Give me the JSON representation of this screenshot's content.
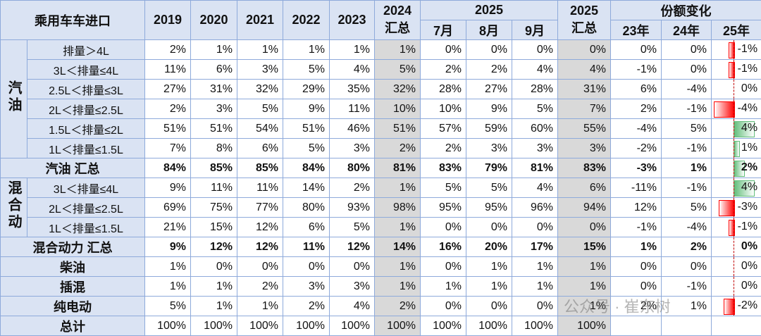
{
  "header": {
    "corner": "乘用车车进口",
    "years": [
      "2019",
      "2020",
      "2021",
      "2022",
      "2023"
    ],
    "y2024": "2024",
    "y2024_sub": "汇总",
    "y2025": "2025",
    "months": [
      "7月",
      "8月",
      "9月"
    ],
    "y2025_total": "2025",
    "y2025_total_sub": "汇总",
    "share": "份额变化",
    "share_years": [
      "23年",
      "24年",
      "25年"
    ]
  },
  "body": [
    {
      "group": "汽油",
      "rows": [
        {
          "label": "排量＞4L",
          "values": [
            "2%",
            "1%",
            "1%",
            "1%",
            "1%",
            "1%",
            "0%",
            "0%",
            "0%",
            "0%"
          ],
          "share_change": [
            "0%",
            "0%",
            {
              "value": -1,
              "label": "-1%"
            }
          ]
        },
        {
          "label": "3L＜排量≤4L",
          "values": [
            "11%",
            "6%",
            "3%",
            "5%",
            "4%",
            "5%",
            "2%",
            "2%",
            "4%",
            "4%"
          ],
          "share_change": [
            "-1%",
            "0%",
            {
              "value": -1,
              "label": "-1%"
            }
          ]
        },
        {
          "label": "2.5L＜排量≤3L",
          "values": [
            "27%",
            "31%",
            "32%",
            "29%",
            "35%",
            "32%",
            "28%",
            "27%",
            "28%",
            "31%"
          ],
          "share_change": [
            "6%",
            "-4%",
            {
              "value": 0,
              "label": "0%"
            }
          ]
        },
        {
          "label": "2L＜排量≤2.5L",
          "values": [
            "2%",
            "3%",
            "5%",
            "9%",
            "11%",
            "10%",
            "10%",
            "9%",
            "5%",
            "7%"
          ],
          "share_change": [
            "2%",
            "-1%",
            {
              "value": -4,
              "label": "-4%"
            }
          ]
        },
        {
          "label": "1.5L＜排量≤2L",
          "values": [
            "51%",
            "51%",
            "54%",
            "51%",
            "46%",
            "51%",
            "57%",
            "59%",
            "60%",
            "55%"
          ],
          "share_change": [
            "-4%",
            "5%",
            {
              "value": 4,
              "label": "4%"
            }
          ]
        },
        {
          "label": "1L＜排量≤1.5L",
          "values": [
            "7%",
            "8%",
            "6%",
            "5%",
            "3%",
            "2%",
            "2%",
            "3%",
            "3%",
            "3%"
          ],
          "share_change": [
            "-2%",
            "-1%",
            {
              "value": 1,
              "label": "1%"
            }
          ]
        }
      ]
    },
    {
      "label": "汽油 汇总",
      "bold": true,
      "values": [
        "84%",
        "85%",
        "85%",
        "84%",
        "80%",
        "81%",
        "83%",
        "79%",
        "81%",
        "83%"
      ],
      "share_change": [
        "-3%",
        "1%",
        {
          "value": 2,
          "label": "2%"
        }
      ]
    },
    {
      "group": "混合动",
      "rows": [
        {
          "label": "3L＜排量≤4L",
          "values": [
            "9%",
            "11%",
            "11%",
            "14%",
            "2%",
            "1%",
            "5%",
            "5%",
            "4%",
            "6%"
          ],
          "share_change": [
            "-11%",
            "-1%",
            {
              "value": 4,
              "label": "4%"
            }
          ]
        },
        {
          "label": "2L＜排量≤2.5L",
          "values": [
            "69%",
            "75%",
            "77%",
            "80%",
            "93%",
            "98%",
            "95%",
            "95%",
            "96%",
            "94%"
          ],
          "share_change": [
            "12%",
            "5%",
            {
              "value": -3,
              "label": "-3%"
            }
          ]
        },
        {
          "label": "1L＜排量≤1.5L",
          "values": [
            "21%",
            "15%",
            "12%",
            "6%",
            "5%",
            "1%",
            "0%",
            "0%",
            "0%",
            "0%"
          ],
          "share_change": [
            "-1%",
            "-4%",
            {
              "value": -1,
              "label": "-1%"
            }
          ]
        }
      ]
    },
    {
      "label": "混合动力 汇总",
      "bold": true,
      "values": [
        "9%",
        "12%",
        "12%",
        "11%",
        "12%",
        "14%",
        "16%",
        "20%",
        "17%",
        "15%"
      ],
      "share_change": [
        "1%",
        "2%",
        {
          "value": 0,
          "label": "0%"
        }
      ]
    },
    {
      "label": "柴油",
      "values": [
        "1%",
        "0%",
        "0%",
        "0%",
        "0%",
        "1%",
        "0%",
        "1%",
        "1%",
        "1%"
      ],
      "share_change": [
        "0%",
        "0%",
        {
          "value": 0,
          "label": "0%"
        }
      ]
    },
    {
      "label": "插混",
      "values": [
        "1%",
        "1%",
        "2%",
        "3%",
        "3%",
        "1%",
        "1%",
        "1%",
        "1%",
        "1%"
      ],
      "share_change": [
        "0%",
        "-1%",
        {
          "value": 0,
          "label": "0%"
        }
      ]
    },
    {
      "label": "纯电动",
      "values": [
        "5%",
        "1%",
        "1%",
        "2%",
        "4%",
        "2%",
        "0%",
        "0%",
        "0%",
        "1%"
      ],
      "share_change": [
        "2%",
        "1%",
        {
          "value": -2,
          "label": "-2%"
        }
      ]
    },
    {
      "label": "总计",
      "values": [
        "100%",
        "100%",
        "100%",
        "100%",
        "100%",
        "100%",
        "100%",
        "100%",
        "100%",
        "100%"
      ]
    }
  ],
  "watermark": "公众号 · 崔东树"
}
